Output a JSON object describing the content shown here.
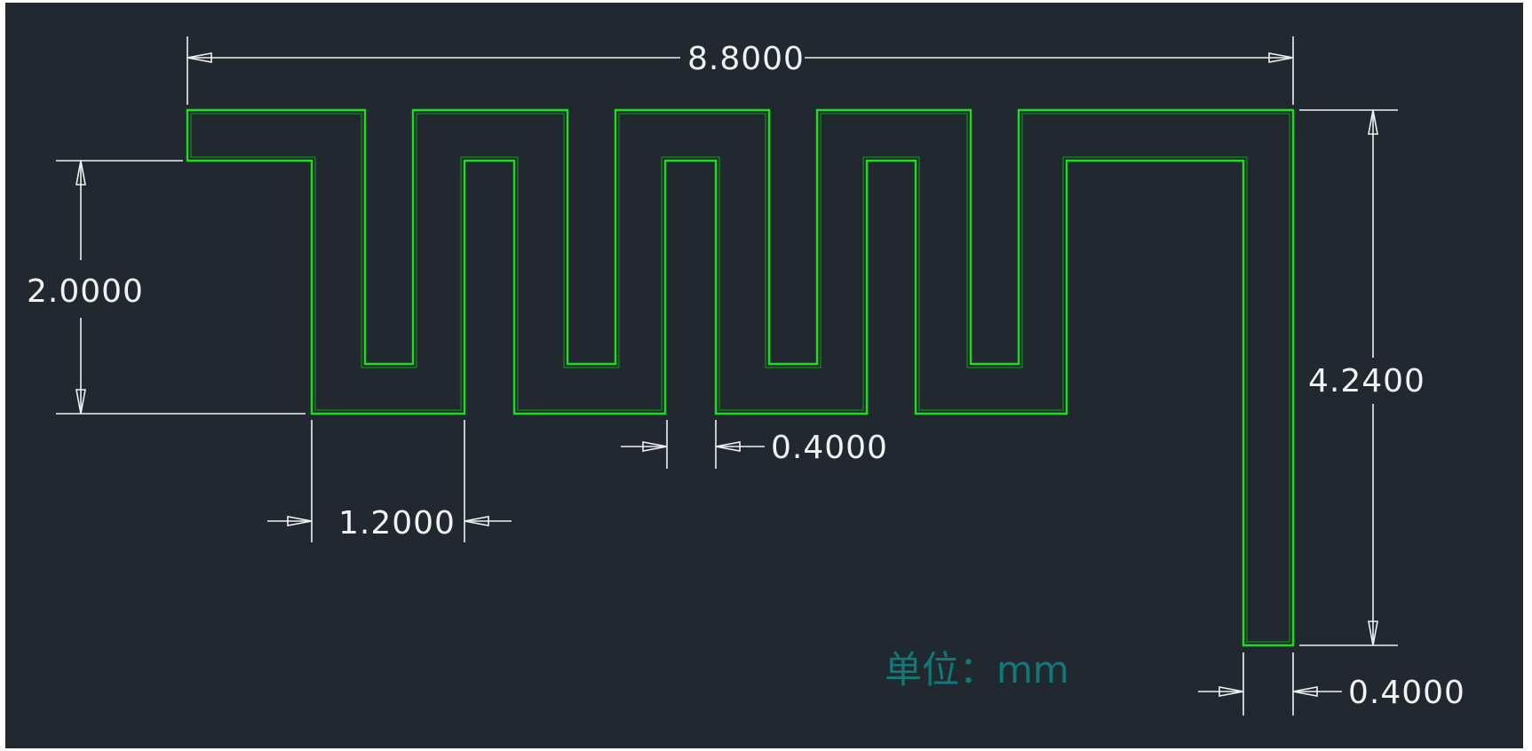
{
  "diagram": {
    "type": "meander antenna dimension drawing",
    "colors": {
      "background": "#212830",
      "trace": "#18e01a",
      "dimension": "#f0f0f0",
      "unit_text": "#0f7a78"
    },
    "dimensions": {
      "total_width": "8.8000",
      "feed_height": "2.0000",
      "total_height": "4.2400",
      "meander_pitch": "1.2000",
      "gap_width": "0.4000",
      "trace_width": "0.4000"
    },
    "unit_label": "单位：mm"
  }
}
